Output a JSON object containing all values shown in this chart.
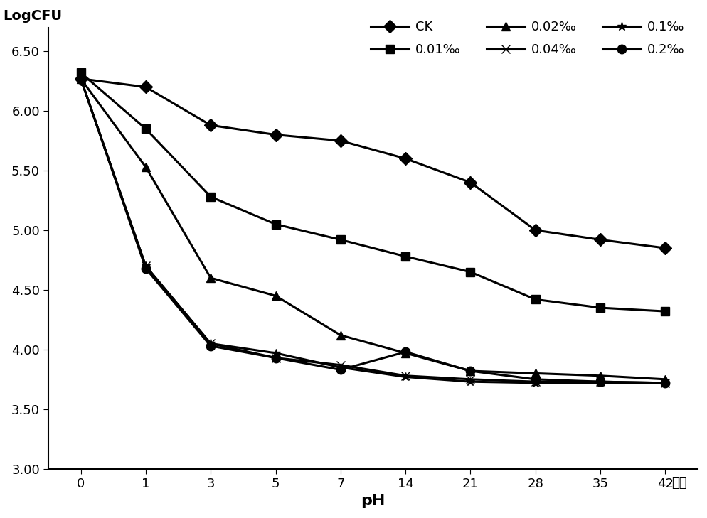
{
  "x_positions": [
    0,
    1,
    2,
    3,
    4,
    5,
    6,
    7,
    8,
    9
  ],
  "x_labels": [
    "0",
    "1",
    "3",
    "5",
    "7",
    "14",
    "21",
    "28",
    "35",
    "42"
  ],
  "series": {
    "CK": [
      6.27,
      6.2,
      5.88,
      5.8,
      5.75,
      5.6,
      5.4,
      5.0,
      4.92,
      4.85
    ],
    "0.01‰": [
      6.32,
      5.85,
      5.28,
      5.05,
      4.92,
      4.78,
      4.65,
      4.42,
      4.35,
      4.32
    ],
    "0.02‰": [
      6.27,
      5.53,
      4.6,
      4.45,
      4.12,
      3.97,
      3.82,
      3.8,
      3.78,
      3.75
    ],
    "0.04‰": [
      6.27,
      4.7,
      4.05,
      3.93,
      3.87,
      3.78,
      3.75,
      3.73,
      3.73,
      3.72
    ],
    "0.1‰": [
      6.27,
      4.7,
      4.05,
      3.97,
      3.85,
      3.77,
      3.73,
      3.72,
      3.72,
      3.72
    ],
    "0.2‰": [
      6.27,
      4.68,
      4.03,
      3.93,
      3.83,
      3.98,
      3.82,
      3.75,
      3.73,
      3.72
    ]
  },
  "markers": {
    "CK": "D",
    "0.01‰": "s",
    "0.02‰": "^",
    "0.04‰": "x",
    "0.1‰": "*",
    "0.2‰": "o"
  },
  "ylim": [
    3.0,
    6.7
  ],
  "yticks": [
    3.0,
    3.5,
    4.0,
    4.5,
    5.0,
    5.5,
    6.0,
    6.5
  ],
  "ylabel": "LogCFU",
  "xlabel": "pH",
  "xlabel2": "天数",
  "legend_order": [
    "CK",
    "0.01‰",
    "0.02‰",
    "0.04‰",
    "0.1‰",
    "0.2‰"
  ],
  "color": "#000000",
  "linewidth": 2.2,
  "markersize": 9,
  "title_fontsize": 13,
  "tick_fontsize": 13
}
